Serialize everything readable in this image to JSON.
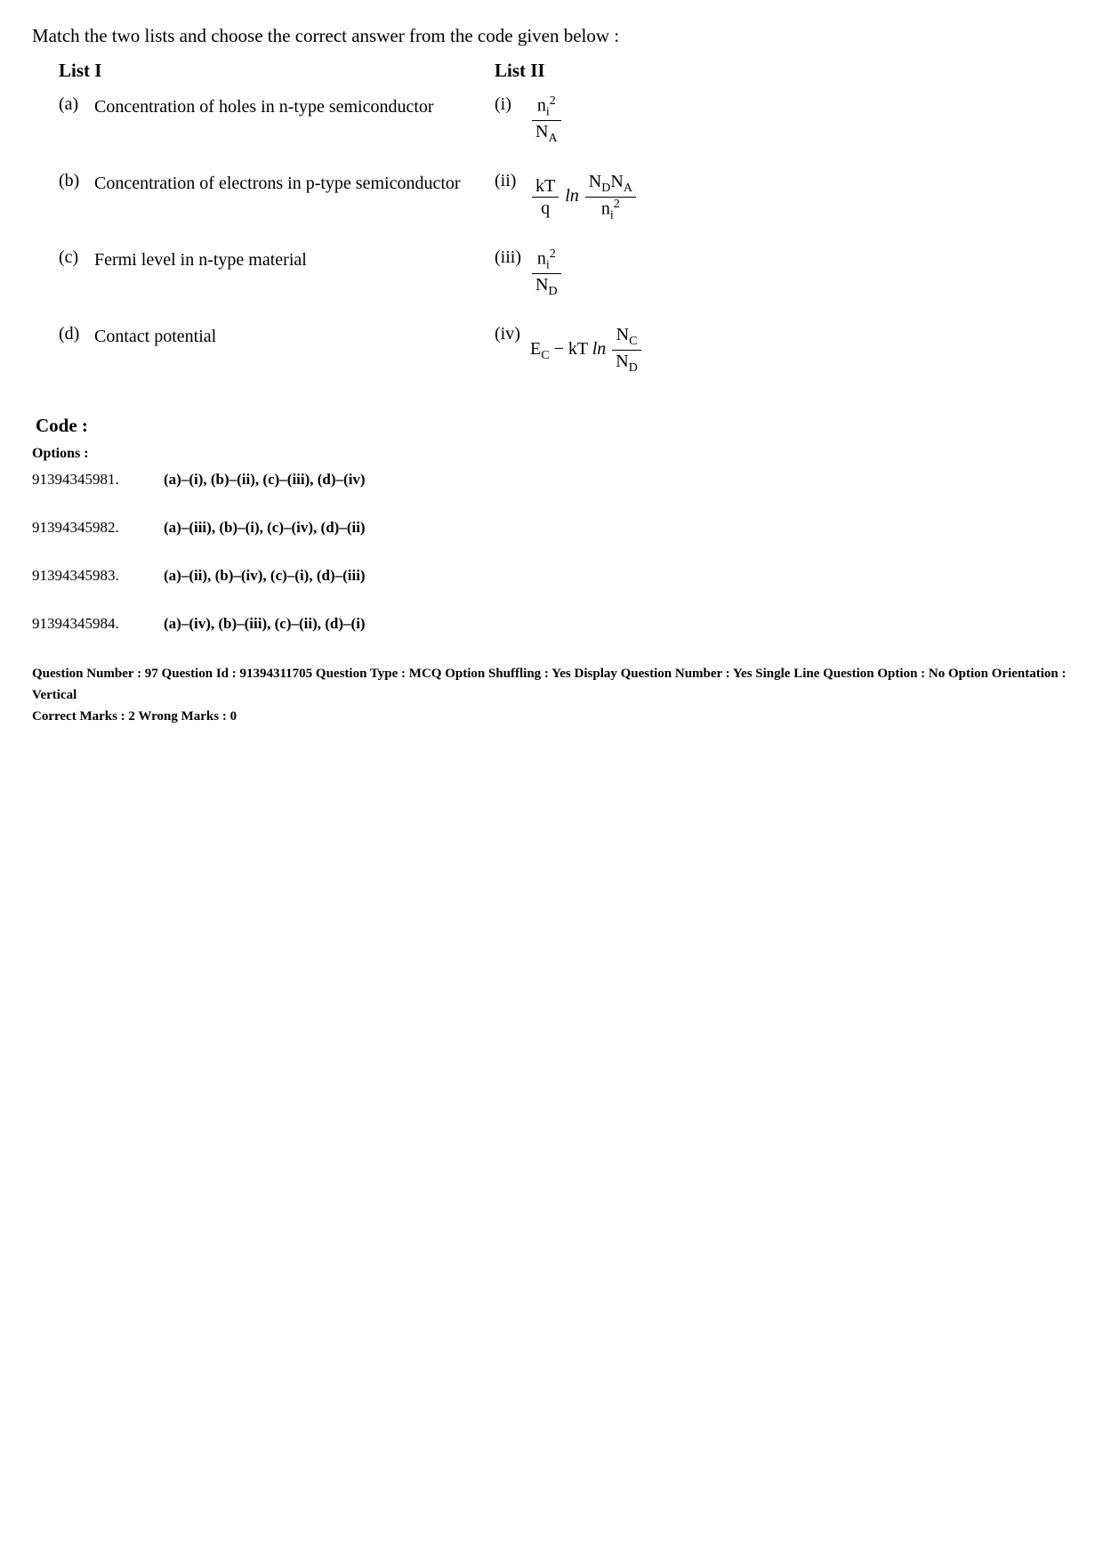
{
  "instruction": "Match the two lists and choose the correct answer from the code given below :",
  "list1_heading": "List I",
  "list2_heading": "List II",
  "list1": {
    "a": {
      "marker": "(a)",
      "text": "Concentration of holes in n-type semiconductor"
    },
    "b": {
      "marker": "(b)",
      "text": "Concentration of electrons in p-type semiconductor"
    },
    "c": {
      "marker": "(c)",
      "text": "Fermi level in n-type material"
    },
    "d": {
      "marker": "(d)",
      "text": "Contact potential"
    }
  },
  "list2": {
    "i": {
      "marker": "(i)"
    },
    "ii": {
      "marker": "(ii)"
    },
    "iii": {
      "marker": "(iii)"
    },
    "iv": {
      "marker": "(iv)"
    }
  },
  "code_heading": "Code :",
  "options_label": "Options :",
  "options": [
    {
      "id": "91394345981.",
      "text": "(a)–(i), (b)–(ii), (c)–(iii), (d)–(iv)"
    },
    {
      "id": "91394345982.",
      "text": "(a)–(iii), (b)–(i), (c)–(iv), (d)–(ii)"
    },
    {
      "id": "91394345983.",
      "text": "(a)–(ii), (b)–(iv), (c)–(i), (d)–(iii)"
    },
    {
      "id": "91394345984.",
      "text": "(a)–(iv), (b)–(iii), (c)–(ii), (d)–(i)"
    }
  ],
  "meta": {
    "line1": "Question Number : 97  Question Id : 91394311705  Question Type : MCQ  Option Shuffling : Yes  Display Question Number : Yes Single Line Question Option : No  Option Orientation : Vertical",
    "line2": "Correct Marks : 2  Wrong Marks : 0"
  }
}
